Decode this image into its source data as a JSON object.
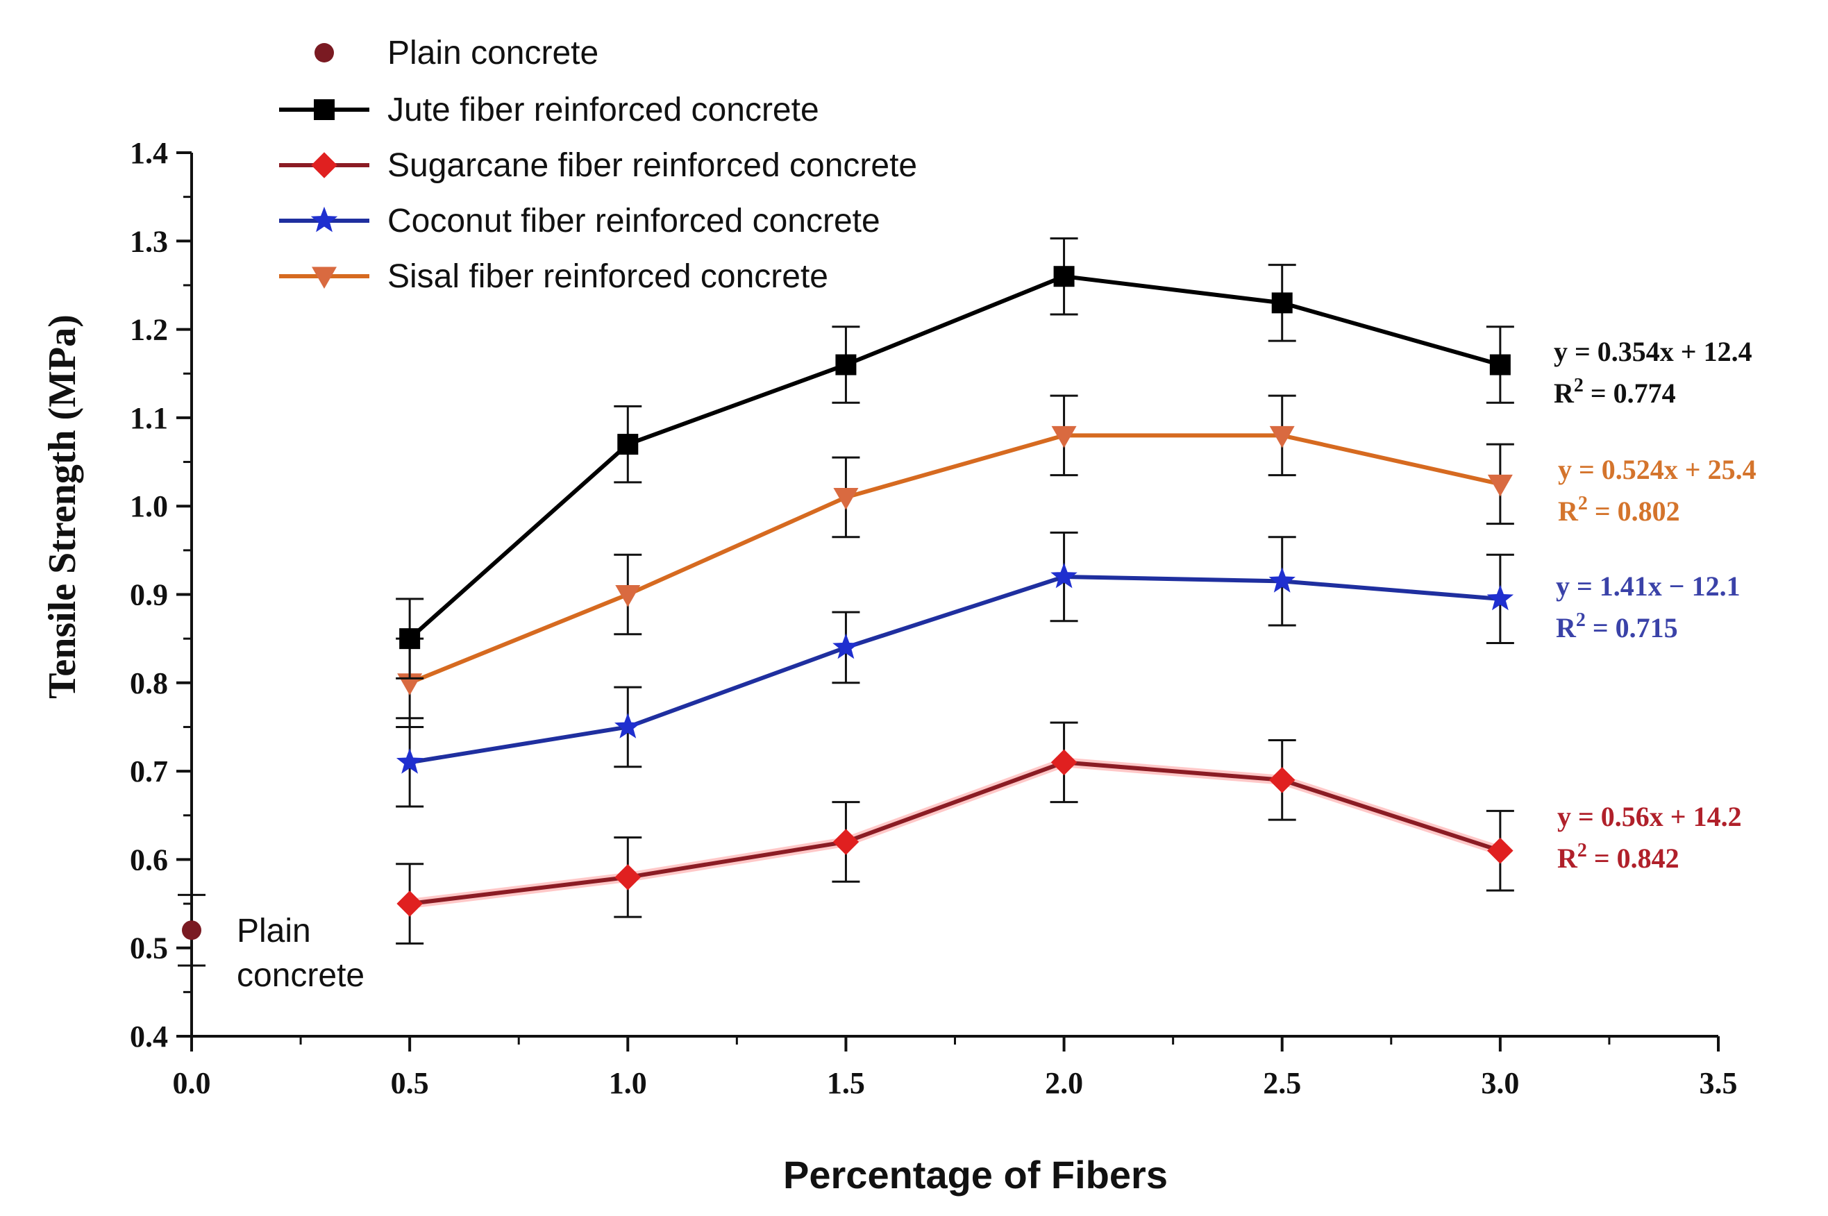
{
  "chart_data": {
    "type": "line",
    "xlabel": "Percentage of Fibers",
    "ylabel": "Tensile Strength (MPa)",
    "xlim": [
      0.0,
      3.5
    ],
    "ylim": [
      0.4,
      1.4
    ],
    "x_ticks": [
      "0.0",
      "0.5",
      "1.0",
      "1.5",
      "2.0",
      "2.5",
      "3.0",
      "3.5"
    ],
    "y_ticks": [
      "0.4",
      "0.5",
      "0.6",
      "0.7",
      "0.8",
      "0.9",
      "1.0",
      "1.1",
      "1.2",
      "1.3",
      "1.4"
    ],
    "grid": false,
    "legend_position": "top-left",
    "plain": {
      "name": "Plain concrete",
      "x": 0.0,
      "y": 0.52,
      "err": 0.04,
      "color": "#7a1a22",
      "label_lines": [
        "Plain",
        "concrete"
      ]
    },
    "x": [
      0.5,
      1.0,
      1.5,
      2.0,
      2.5,
      3.0
    ],
    "series": [
      {
        "name": "Jute fiber reinforced concrete",
        "color": "#000000",
        "marker": "square",
        "values": [
          0.85,
          1.07,
          1.16,
          1.26,
          1.23,
          1.16
        ],
        "errors": [
          0.045,
          0.043,
          0.043,
          0.043,
          0.043,
          0.043
        ],
        "equation": "y = 0.354x + 12.4",
        "r2": "= 0.774",
        "eq_color": "#111111"
      },
      {
        "name": "Sugarcane fiber reinforced concrete",
        "color": "#e02020",
        "line_color": "#8b1c24",
        "marker": "diamond",
        "values": [
          0.55,
          0.58,
          0.62,
          0.71,
          0.69,
          0.61
        ],
        "errors": [
          0.045,
          0.045,
          0.045,
          0.045,
          0.045,
          0.045
        ],
        "equation": "y = 0.56x + 14.2",
        "r2": "= 0.842",
        "eq_color": "#b0202a"
      },
      {
        "name": "Coconut fiber reinforced concrete",
        "color": "#1f2fcf",
        "line_color": "#1f2f9f",
        "marker": "star",
        "values": [
          0.71,
          0.75,
          0.84,
          0.92,
          0.915,
          0.895
        ],
        "errors": [
          0.05,
          0.045,
          0.04,
          0.05,
          0.05,
          0.05
        ],
        "equation": "y = 1.41x − 12.1",
        "r2": "= 0.715",
        "eq_color": "#3a42a8"
      },
      {
        "name": "Sisal fiber reinforced concrete",
        "color": "#d96a40",
        "line_color": "#d66a20",
        "marker": "triangle-down",
        "values": [
          0.8,
          0.9,
          1.01,
          1.08,
          1.08,
          1.025
        ],
        "errors": [
          0.05,
          0.045,
          0.045,
          0.045,
          0.045,
          0.045
        ],
        "equation": "y = 0.524x + 25.4",
        "r2": "= 0.802",
        "eq_color": "#d4742c"
      }
    ]
  }
}
